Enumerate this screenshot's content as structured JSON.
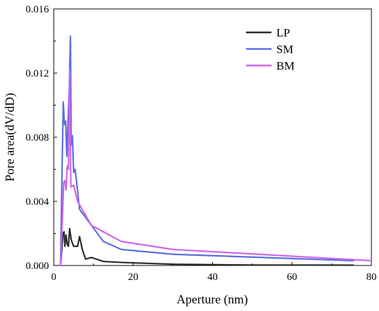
{
  "chart_data": {
    "type": "line",
    "title": "",
    "xlabel": "Aperture (nm)",
    "ylabel": "Pore area(dV/dD)",
    "xlim": [
      0,
      80
    ],
    "ylim": [
      0,
      0.016
    ],
    "xticks": [
      0,
      20,
      40,
      60,
      80
    ],
    "xtick_labels": [
      "0",
      "20",
      "40",
      "60",
      "80"
    ],
    "yticks": [
      0,
      0.004,
      0.008,
      0.012,
      0.016
    ],
    "ytick_labels": [
      "0.000",
      "0.004",
      "0.008",
      "0.012",
      "0.016"
    ],
    "grid": false,
    "legend_position": "top-right",
    "series": [
      {
        "name": "LP",
        "color": "#2b2b2b",
        "points": [
          [
            1.7,
            0.0
          ],
          [
            2.0,
            0.0009
          ],
          [
            2.3,
            0.002
          ],
          [
            2.6,
            0.0021
          ],
          [
            2.8,
            0.0012
          ],
          [
            3.1,
            0.0019
          ],
          [
            3.4,
            0.0013
          ],
          [
            3.7,
            0.0012
          ],
          [
            4.0,
            0.0023
          ],
          [
            4.4,
            0.0016
          ],
          [
            5.0,
            0.0012
          ],
          [
            6.0,
            0.0012
          ],
          [
            6.5,
            0.0018
          ],
          [
            7.2,
            0.001
          ],
          [
            8.0,
            0.0004
          ],
          [
            9.5,
            0.0005
          ],
          [
            12.5,
            0.00025
          ],
          [
            18,
            0.00018
          ],
          [
            30,
            8e-05
          ],
          [
            50,
            3e-05
          ],
          [
            75.5,
            2e-05
          ]
        ]
      },
      {
        "name": "SM",
        "color": "#5b6ee1",
        "points": [
          [
            1.7,
            0.0
          ],
          [
            2.1,
            0.006
          ],
          [
            2.4,
            0.0102
          ],
          [
            2.7,
            0.0088
          ],
          [
            3.0,
            0.009
          ],
          [
            3.3,
            0.0068
          ],
          [
            3.6,
            0.009
          ],
          [
            3.9,
            0.011
          ],
          [
            4.2,
            0.0143
          ],
          [
            4.4,
            0.0075
          ],
          [
            4.7,
            0.0081
          ],
          [
            5.0,
            0.0058
          ],
          [
            5.4,
            0.006
          ],
          [
            6.5,
            0.0035
          ],
          [
            9.5,
            0.0025
          ],
          [
            12.5,
            0.0015
          ],
          [
            17,
            0.001
          ],
          [
            30,
            0.0007
          ],
          [
            75.5,
            0.0003
          ]
        ]
      },
      {
        "name": "BM",
        "color": "#cc66e8",
        "points": [
          [
            1.7,
            0.0
          ],
          [
            2.2,
            0.003
          ],
          [
            2.5,
            0.0052
          ],
          [
            2.8,
            0.0053
          ],
          [
            3.1,
            0.0047
          ],
          [
            3.4,
            0.0062
          ],
          [
            3.7,
            0.006
          ],
          [
            4.0,
            0.0122
          ],
          [
            4.3,
            0.0049
          ],
          [
            5.0,
            0.005
          ],
          [
            6.0,
            0.004
          ],
          [
            9.5,
            0.0025
          ],
          [
            17,
            0.0015
          ],
          [
            30,
            0.001
          ],
          [
            80,
            0.0003
          ]
        ]
      }
    ]
  }
}
